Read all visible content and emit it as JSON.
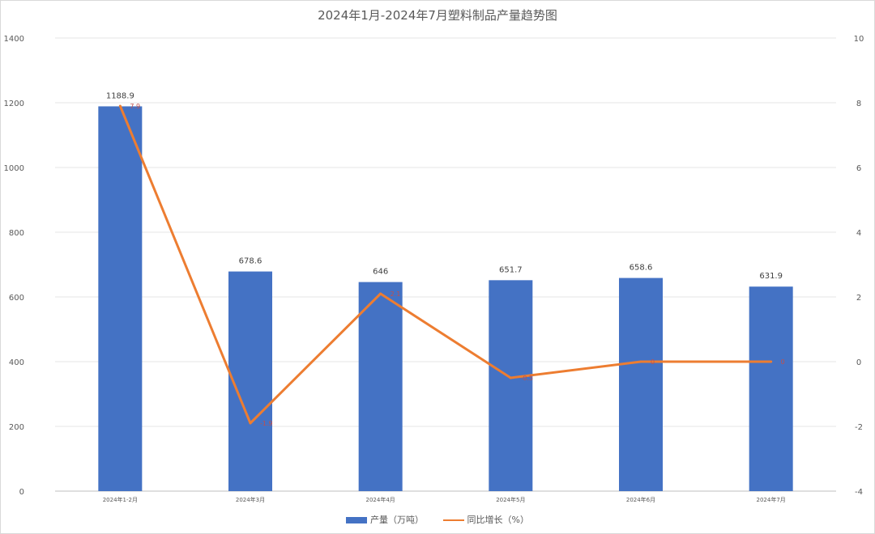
{
  "chart_data": {
    "type": "bar+line",
    "title": "2024年1月-2024年7月塑料制品产量趋势图",
    "categories": [
      "2024年1-2月",
      "2024年3月",
      "2024年4月",
      "2024年5月",
      "2024年6月",
      "2024年7月"
    ],
    "series": [
      {
        "name": "产量（万吨）",
        "type": "bar",
        "axis": "left",
        "color": "#4472c4",
        "values": [
          1188.9,
          678.6,
          646,
          651.7,
          658.6,
          631.9
        ],
        "labels": [
          "1188.9",
          "678.6",
          "646",
          "651.7",
          "658.6",
          "631.9"
        ]
      },
      {
        "name": "同比增长（%）",
        "type": "line",
        "axis": "right",
        "color": "#ed7d31",
        "values": [
          7.9,
          -1.9,
          2.1,
          -0.5,
          0,
          0
        ],
        "labels": [
          "7.9",
          "-1.9",
          "2.1",
          "-0.5",
          "0",
          "0"
        ]
      }
    ],
    "y_left": {
      "min": 0,
      "max": 1400,
      "ticks": [
        "0",
        "200",
        "400",
        "600",
        "800",
        "1000",
        "1200",
        "1400"
      ]
    },
    "y_right": {
      "min": -4,
      "max": 10,
      "ticks": [
        "-4",
        "-2",
        "0",
        "2",
        "4",
        "6",
        "8",
        "10"
      ]
    },
    "grid": true,
    "legend_position": "bottom"
  }
}
